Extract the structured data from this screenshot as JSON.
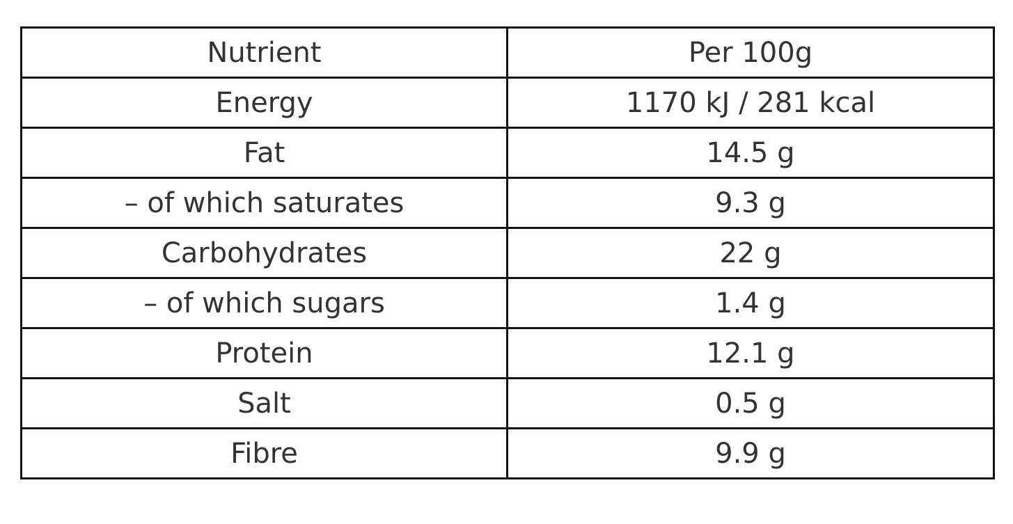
{
  "table": {
    "headers": [
      "Nutrient",
      "Per 100g"
    ],
    "rows": [
      [
        "Energy",
        "1170 kJ / 281 kcal"
      ],
      [
        "Fat",
        "14.5 g"
      ],
      [
        "– of which saturates",
        "9.3 g"
      ],
      [
        "Carbohydrates",
        "22 g"
      ],
      [
        "– of which sugars",
        "1.4 g"
      ],
      [
        "Protein",
        "12.1 g"
      ],
      [
        "Salt",
        "0.5 g"
      ],
      [
        "Fibre",
        "9.9 g"
      ]
    ]
  }
}
